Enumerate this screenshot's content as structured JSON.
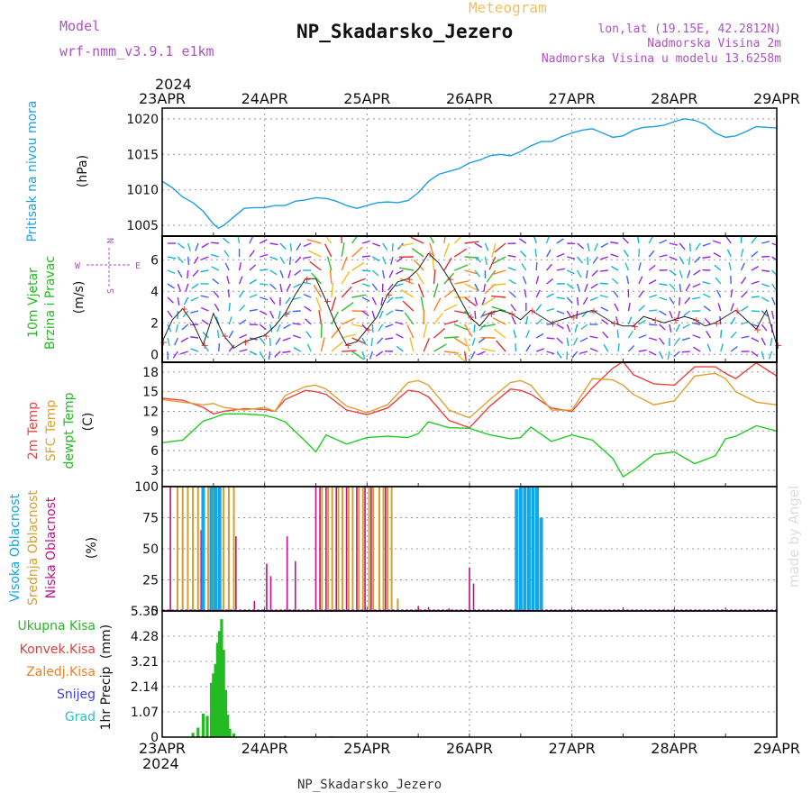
{
  "header": {
    "title": "NP_Skadarsko_Jezero",
    "subtitle": "Meteogram",
    "model_label": "Model",
    "model_name": "wrf-nmm_v3.9.1 e1km",
    "lonlat": "lon,lat (19.15E, 42.2812N)",
    "station_height": "Nadmorska Visina 2m",
    "model_height": "Nadmorska Visina u modelu 13.6258m",
    "footer_name": "NP_Skadarsko_Jezero",
    "watermark": "made by Angel",
    "year": "2024"
  },
  "colors": {
    "pressure": "#1e9fe6",
    "temp2m": "#f04040",
    "sfc": "#e0a030",
    "dewpt": "#22cc22",
    "high": "#10a8e8",
    "mid": "#d4a030",
    "low": "#c0108a",
    "rain": "#22bb22",
    "conv": "#e04040",
    "frozen": "#f08020",
    "snow": "#4040e0",
    "graupel": "#30c0c0",
    "purple": "#b050c8"
  },
  "chart_data": [
    {
      "type": "line",
      "name": "pressure",
      "ylabel_1": "Pritisak na nivou mora",
      "ylabel_2": "(hPa)",
      "x_ticks": [
        "23APR",
        "24APR",
        "25APR",
        "26APR",
        "27APR",
        "28APR",
        "29APR"
      ],
      "ylim": [
        1003.5,
        1021.5
      ],
      "yticks": [
        1005,
        1010,
        1015,
        1020
      ],
      "x_days": [
        0,
        0.1,
        0.2,
        0.3,
        0.4,
        0.5,
        0.55,
        0.6,
        0.7,
        0.8,
        0.9,
        1.0,
        1.1,
        1.2,
        1.3,
        1.4,
        1.5,
        1.6,
        1.7,
        1.8,
        1.9,
        2.0,
        2.1,
        2.2,
        2.3,
        2.4,
        2.5,
        2.6,
        2.7,
        2.8,
        2.9,
        3.0,
        3.1,
        3.2,
        3.3,
        3.4,
        3.5,
        3.6,
        3.7,
        3.8,
        3.9,
        4.0,
        4.1,
        4.2,
        4.3,
        4.4,
        4.5,
        4.6,
        4.7,
        4.8,
        4.9,
        5.0,
        5.1,
        5.2,
        5.3,
        5.4,
        5.5,
        5.6,
        5.7,
        5.8,
        5.9,
        6.0
      ],
      "series": [
        {
          "values": [
            1011.2,
            1010.3,
            1009.0,
            1008.2,
            1007.0,
            1005.2,
            1004.6,
            1005.0,
            1006.2,
            1007.4,
            1007.5,
            1007.5,
            1007.8,
            1007.8,
            1008.4,
            1008.6,
            1008.9,
            1008.8,
            1008.4,
            1007.8,
            1007.4,
            1007.8,
            1008.2,
            1008.3,
            1008.2,
            1008.5,
            1009.6,
            1011.2,
            1012.2,
            1012.6,
            1013.0,
            1013.8,
            1014.2,
            1014.8,
            1015.0,
            1014.8,
            1015.4,
            1016.2,
            1016.8,
            1016.8,
            1017.5,
            1018.0,
            1018.4,
            1018.6,
            1018.0,
            1017.4,
            1017.6,
            1018.4,
            1018.8,
            1018.9,
            1019.1,
            1019.6,
            1020.0,
            1019.8,
            1019.2,
            1018.0,
            1017.4,
            1017.6,
            1018.2,
            1018.9,
            1018.8,
            1018.7
          ]
        }
      ]
    },
    {
      "type": "line",
      "name": "wind",
      "ylabel_1": "10m Vjetar",
      "ylabel_2": "Brzina i Pravac",
      "ylabel_3": "(m/s)",
      "compass_n": "N",
      "compass_s": "S",
      "compass_w": "W",
      "compass_e": "E",
      "ylim": [
        -0.5,
        7.5
      ],
      "yticks": [
        0,
        2,
        4,
        6
      ],
      "x_days": [
        0,
        0.1,
        0.2,
        0.3,
        0.4,
        0.5,
        0.6,
        0.7,
        0.8,
        0.9,
        1.0,
        1.1,
        1.2,
        1.3,
        1.4,
        1.5,
        1.6,
        1.7,
        1.8,
        1.9,
        2.0,
        2.1,
        2.2,
        2.3,
        2.4,
        2.5,
        2.6,
        2.7,
        2.8,
        2.9,
        3.0,
        3.1,
        3.2,
        3.3,
        3.4,
        3.5,
        3.6,
        3.7,
        3.8,
        3.9,
        4.0,
        4.1,
        4.2,
        4.3,
        4.4,
        4.5,
        4.6,
        4.7,
        4.8,
        4.9,
        5.0,
        5.1,
        5.2,
        5.3,
        5.4,
        5.5,
        5.6,
        5.7,
        5.8,
        5.9,
        6.0
      ],
      "series": [
        {
          "values": [
            0.8,
            2.2,
            2.9,
            2.0,
            0.6,
            2.6,
            1.2,
            0.4,
            0.8,
            1.0,
            1.2,
            1.8,
            2.6,
            3.8,
            4.8,
            4.8,
            3.4,
            1.8,
            0.6,
            0.8,
            1.6,
            2.4,
            3.8,
            4.6,
            4.8,
            5.4,
            6.4,
            5.8,
            4.8,
            3.6,
            2.4,
            1.8,
            2.6,
            2.8,
            2.6,
            2.2,
            2.8,
            2.4,
            2.0,
            2.2,
            2.4,
            2.6,
            2.8,
            2.4,
            2.0,
            1.8,
            1.8,
            2.4,
            2.2,
            2.0,
            2.2,
            2.4,
            2.2,
            1.8,
            2.0,
            2.4,
            2.8,
            2.2,
            1.6,
            2.8,
            0.6
          ]
        }
      ]
    },
    {
      "type": "line",
      "name": "temperature",
      "ylabel_1": "2m Temp",
      "ylabel_2": "SFC Temp",
      "ylabel_3": "dewpt Temp",
      "ylabel_4": "(C)",
      "ylim": [
        0.5,
        19.5
      ],
      "yticks": [
        3,
        6,
        9,
        12,
        15,
        18
      ],
      "x_days": [
        0,
        0.2,
        0.4,
        0.5,
        0.6,
        0.8,
        1.0,
        1.1,
        1.2,
        1.4,
        1.5,
        1.6,
        1.8,
        2.0,
        2.2,
        2.4,
        2.5,
        2.6,
        2.8,
        3.0,
        3.2,
        3.4,
        3.5,
        3.6,
        3.8,
        4.0,
        4.2,
        4.4,
        4.5,
        4.6,
        4.8,
        5.0,
        5.2,
        5.4,
        5.5,
        5.6,
        5.8,
        6.0
      ],
      "series": [
        {
          "name": "2m",
          "values": [
            14.0,
            13.7,
            12.6,
            11.6,
            12.0,
            12.4,
            12.3,
            12.0,
            13.8,
            15.2,
            15.0,
            14.6,
            12.2,
            11.5,
            12.5,
            15.2,
            15.0,
            14.2,
            10.6,
            9.5,
            12.8,
            15.4,
            15.2,
            14.6,
            12.5,
            12.0,
            15.6,
            18.6,
            19.6,
            17.6,
            16.2,
            16.0,
            18.8,
            18.8,
            17.8,
            17.0,
            19.4,
            17.4
          ]
        },
        {
          "name": "sfc",
          "values": [
            13.8,
            13.4,
            13.0,
            13.2,
            12.6,
            12.2,
            12.6,
            12.0,
            14.4,
            15.8,
            16.0,
            15.4,
            12.8,
            11.8,
            13.0,
            16.4,
            16.7,
            16.0,
            12.2,
            11.0,
            13.8,
            16.4,
            16.7,
            16.0,
            12.2,
            12.2,
            17.0,
            16.8,
            16.0,
            14.6,
            13.0,
            13.6,
            17.4,
            17.8,
            17.0,
            15.0,
            13.4,
            13.0
          ]
        },
        {
          "name": "dewpt",
          "values": [
            7.2,
            7.6,
            10.5,
            11.0,
            11.6,
            11.6,
            11.4,
            11.0,
            10.4,
            7.4,
            5.8,
            8.4,
            7.0,
            8.0,
            8.2,
            8.0,
            8.6,
            10.4,
            9.5,
            9.4,
            8.4,
            7.8,
            8.0,
            9.6,
            7.4,
            8.4,
            7.6,
            4.8,
            2.0,
            3.0,
            5.4,
            5.8,
            4.0,
            5.2,
            7.8,
            8.2,
            9.8,
            9.0
          ]
        }
      ]
    },
    {
      "type": "bar",
      "name": "cloud",
      "ylabel_1": "Visoka Oblacnost",
      "ylabel_2": "Srednja Oblacnost",
      "ylabel_3": "Niska Oblacnost",
      "ylabel_4": "(%)",
      "ylim": [
        0,
        100
      ],
      "yticks": [
        0,
        25,
        50,
        75,
        100
      ],
      "series": [
        {
          "name": "low",
          "x_days": [
            0.08,
            0.2,
            0.3,
            0.38,
            0.45,
            0.52,
            0.6,
            0.65,
            0.72,
            0.9,
            1.02,
            1.06,
            1.22,
            1.3,
            1.5,
            1.54,
            1.6,
            1.7,
            1.8,
            1.9,
            1.98,
            2.04,
            2.18,
            2.3,
            2.5,
            2.6,
            2.8,
            3.0,
            3.04
          ],
          "values": [
            100,
            75,
            100,
            65,
            55,
            100,
            100,
            95,
            60,
            8,
            38,
            28,
            60,
            40,
            100,
            100,
            100,
            100,
            100,
            100,
            100,
            100,
            100,
            5,
            4,
            3,
            2,
            35,
            22
          ]
        },
        {
          "name": "mid",
          "x_days": [
            0.15,
            0.2,
            0.25,
            0.3,
            0.35,
            0.4,
            0.45,
            0.5,
            0.55,
            0.6,
            0.65,
            0.7,
            1.56,
            1.62,
            1.66,
            1.72,
            1.76,
            1.82,
            1.86,
            1.92,
            1.96,
            2.02,
            2.06,
            2.12,
            2.16,
            2.2,
            2.24,
            2.3
          ],
          "values": [
            100,
            100,
            100,
            100,
            100,
            100,
            100,
            100,
            100,
            100,
            100,
            100,
            100,
            100,
            100,
            100,
            100,
            100,
            100,
            100,
            100,
            100,
            100,
            100,
            100,
            100,
            100,
            10
          ]
        },
        {
          "name": "high",
          "x_days": [
            0.4,
            0.48,
            0.52,
            0.56,
            3.46,
            3.5,
            3.54,
            3.58,
            3.62,
            3.66,
            3.7
          ],
          "values": [
            100,
            100,
            100,
            100,
            98,
            100,
            100,
            100,
            100,
            100,
            75
          ]
        }
      ]
    },
    {
      "type": "bar",
      "name": "precip",
      "ylabel_1": "1hr Precip",
      "ylabel_2": "(mm)",
      "ylim": [
        0,
        5.35
      ],
      "yticks": [
        0,
        1.07,
        2.14,
        3.21,
        4.28,
        5.35
      ],
      "ytick_labels": [
        "0",
        "1.07",
        "2.14",
        "3.21",
        "4.28",
        "5.35"
      ],
      "legend": [
        "Ukupna Kisa",
        "Konvek.Kisa",
        "Zaledj.Kisa",
        "Snijeg",
        "Grad"
      ],
      "x_days": [
        0.3,
        0.35,
        0.4,
        0.44,
        0.48,
        0.5,
        0.52,
        0.54,
        0.56,
        0.58,
        0.6,
        0.62,
        0.64,
        0.66,
        0.7,
        1.2,
        1.65,
        1.7
      ],
      "values": [
        0.18,
        0.4,
        1.0,
        0.9,
        2.3,
        2.7,
        3.1,
        4.0,
        4.5,
        5.0,
        3.7,
        2.0,
        0.95,
        0.35,
        0.15,
        0.05,
        0.03,
        0.02
      ]
    }
  ]
}
